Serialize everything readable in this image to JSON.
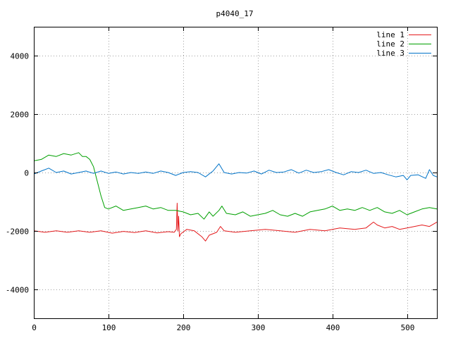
{
  "chart_data": {
    "type": "line",
    "title": "p4040_17",
    "xlabel": "",
    "ylabel": "",
    "xlim": [
      0,
      540
    ],
    "ylim": [
      -5000,
      5000
    ],
    "x_ticks": [
      0,
      100,
      200,
      300,
      400,
      500
    ],
    "y_ticks": [
      -4000,
      -2000,
      0,
      2000,
      4000
    ],
    "grid": true,
    "legend_position": "top-right",
    "series": [
      {
        "name": "line 1",
        "color": "#e41a1c",
        "points": [
          [
            0,
            -2000
          ],
          [
            15,
            -2050
          ],
          [
            30,
            -2000
          ],
          [
            45,
            -2050
          ],
          [
            60,
            -2000
          ],
          [
            75,
            -2050
          ],
          [
            90,
            -2000
          ],
          [
            105,
            -2080
          ],
          [
            120,
            -2020
          ],
          [
            135,
            -2060
          ],
          [
            150,
            -2000
          ],
          [
            165,
            -2070
          ],
          [
            180,
            -2030
          ],
          [
            188,
            -2050
          ],
          [
            191,
            -1950
          ],
          [
            192,
            -1050
          ],
          [
            193,
            -2000
          ],
          [
            194,
            -1500
          ],
          [
            195,
            -2200
          ],
          [
            197,
            -2100
          ],
          [
            205,
            -1950
          ],
          [
            215,
            -2000
          ],
          [
            225,
            -2200
          ],
          [
            230,
            -2350
          ],
          [
            235,
            -2150
          ],
          [
            245,
            -2050
          ],
          [
            250,
            -1850
          ],
          [
            255,
            -2000
          ],
          [
            270,
            -2050
          ],
          [
            290,
            -2000
          ],
          [
            310,
            -1950
          ],
          [
            330,
            -2000
          ],
          [
            350,
            -2050
          ],
          [
            370,
            -1950
          ],
          [
            390,
            -2000
          ],
          [
            410,
            -1900
          ],
          [
            430,
            -1950
          ],
          [
            445,
            -1900
          ],
          [
            455,
            -1700
          ],
          [
            460,
            -1800
          ],
          [
            470,
            -1900
          ],
          [
            480,
            -1850
          ],
          [
            490,
            -1950
          ],
          [
            500,
            -1900
          ],
          [
            510,
            -1850
          ],
          [
            520,
            -1800
          ],
          [
            530,
            -1850
          ],
          [
            540,
            -1700
          ]
        ]
      },
      {
        "name": "line 2",
        "color": "#00a000",
        "points": [
          [
            0,
            400
          ],
          [
            10,
            450
          ],
          [
            20,
            600
          ],
          [
            30,
            550
          ],
          [
            40,
            650
          ],
          [
            50,
            600
          ],
          [
            60,
            680
          ],
          [
            65,
            550
          ],
          [
            70,
            550
          ],
          [
            75,
            450
          ],
          [
            80,
            200
          ],
          [
            85,
            -300
          ],
          [
            90,
            -800
          ],
          [
            95,
            -1200
          ],
          [
            100,
            -1250
          ],
          [
            110,
            -1150
          ],
          [
            120,
            -1300
          ],
          [
            130,
            -1250
          ],
          [
            140,
            -1200
          ],
          [
            150,
            -1150
          ],
          [
            160,
            -1250
          ],
          [
            170,
            -1200
          ],
          [
            180,
            -1300
          ],
          [
            190,
            -1300
          ],
          [
            200,
            -1350
          ],
          [
            210,
            -1450
          ],
          [
            220,
            -1400
          ],
          [
            228,
            -1600
          ],
          [
            235,
            -1350
          ],
          [
            240,
            -1500
          ],
          [
            248,
            -1300
          ],
          [
            252,
            -1150
          ],
          [
            258,
            -1400
          ],
          [
            270,
            -1450
          ],
          [
            280,
            -1350
          ],
          [
            290,
            -1500
          ],
          [
            300,
            -1450
          ],
          [
            310,
            -1400
          ],
          [
            320,
            -1300
          ],
          [
            330,
            -1450
          ],
          [
            340,
            -1500
          ],
          [
            350,
            -1400
          ],
          [
            360,
            -1500
          ],
          [
            370,
            -1350
          ],
          [
            380,
            -1300
          ],
          [
            390,
            -1250
          ],
          [
            400,
            -1150
          ],
          [
            410,
            -1300
          ],
          [
            420,
            -1250
          ],
          [
            430,
            -1300
          ],
          [
            440,
            -1200
          ],
          [
            450,
            -1300
          ],
          [
            460,
            -1200
          ],
          [
            470,
            -1350
          ],
          [
            480,
            -1400
          ],
          [
            490,
            -1300
          ],
          [
            500,
            -1450
          ],
          [
            510,
            -1350
          ],
          [
            520,
            -1250
          ],
          [
            530,
            -1200
          ],
          [
            540,
            -1250
          ]
        ]
      },
      {
        "name": "line 3",
        "color": "#0073c8",
        "points": [
          [
            0,
            -50
          ],
          [
            10,
            50
          ],
          [
            20,
            150
          ],
          [
            30,
            0
          ],
          [
            40,
            50
          ],
          [
            50,
            -50
          ],
          [
            60,
            0
          ],
          [
            70,
            50
          ],
          [
            80,
            -30
          ],
          [
            90,
            50
          ],
          [
            100,
            -30
          ],
          [
            110,
            20
          ],
          [
            120,
            -50
          ],
          [
            130,
            0
          ],
          [
            140,
            -30
          ],
          [
            150,
            20
          ],
          [
            160,
            -30
          ],
          [
            170,
            50
          ],
          [
            180,
            0
          ],
          [
            190,
            -100
          ],
          [
            200,
            0
          ],
          [
            210,
            30
          ],
          [
            220,
            0
          ],
          [
            230,
            -150
          ],
          [
            240,
            50
          ],
          [
            248,
            300
          ],
          [
            255,
            0
          ],
          [
            265,
            -50
          ],
          [
            275,
            0
          ],
          [
            285,
            -20
          ],
          [
            295,
            50
          ],
          [
            305,
            -50
          ],
          [
            315,
            80
          ],
          [
            325,
            0
          ],
          [
            335,
            20
          ],
          [
            345,
            100
          ],
          [
            355,
            -20
          ],
          [
            365,
            80
          ],
          [
            375,
            0
          ],
          [
            385,
            30
          ],
          [
            395,
            100
          ],
          [
            405,
            0
          ],
          [
            415,
            -80
          ],
          [
            425,
            30
          ],
          [
            435,
            0
          ],
          [
            445,
            80
          ],
          [
            455,
            -30
          ],
          [
            465,
            0
          ],
          [
            475,
            -80
          ],
          [
            485,
            -150
          ],
          [
            495,
            -100
          ],
          [
            500,
            -250
          ],
          [
            505,
            -100
          ],
          [
            515,
            -80
          ],
          [
            525,
            -200
          ],
          [
            530,
            100
          ],
          [
            535,
            -100
          ],
          [
            540,
            -150
          ]
        ]
      }
    ]
  }
}
